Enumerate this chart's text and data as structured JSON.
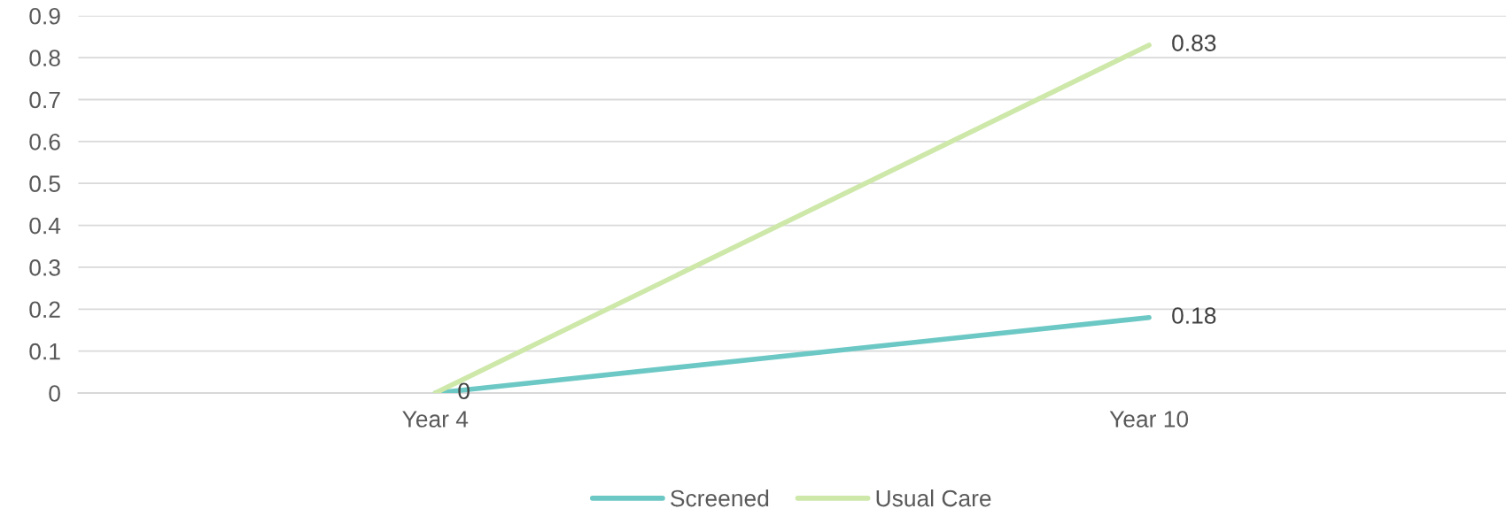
{
  "chart_data": {
    "type": "line",
    "categories": [
      "Year 4",
      "Year 10"
    ],
    "series": [
      {
        "name": "Screened",
        "color": "#6cc8c4",
        "values": [
          0,
          0.18
        ],
        "value_labels": [
          "0",
          "0.18"
        ]
      },
      {
        "name": "Usual Care",
        "color": "#cde8a9",
        "values": [
          0,
          0.83
        ],
        "value_labels": [
          null,
          "0.83"
        ]
      }
    ],
    "ylim": [
      0,
      0.9
    ],
    "yticks": [
      0,
      0.1,
      0.2,
      0.3,
      0.4,
      0.5,
      0.6,
      0.7,
      0.8,
      0.9
    ],
    "grid": "y",
    "legend": "bottom",
    "marker": "none",
    "line_style": "solid"
  }
}
